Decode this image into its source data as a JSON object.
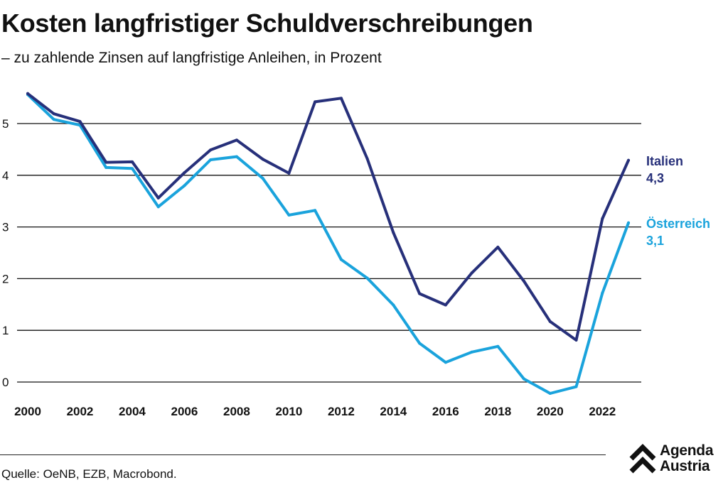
{
  "title": "Kosten langfristiger Schuldverschreibungen",
  "subtitle": "– zu zahlende Zinsen auf langfristige Anleihen, in Prozent",
  "source": "Quelle: OeNB, EZB, Macrobond.",
  "logo": {
    "line1": "Agenda",
    "line2": "Austria"
  },
  "chart_data": {
    "type": "line",
    "title": "Kosten langfristiger Schuldverschreibungen",
    "subtitle": "– zu zahlende Zinsen auf langfristige Anleihen, in Prozent",
    "xlabel": "",
    "ylabel": "",
    "xlim": [
      2000,
      2023
    ],
    "ylim": [
      -0.3,
      5.8
    ],
    "yticks": [
      0,
      1,
      2,
      3,
      4,
      5
    ],
    "xticks": [
      2000,
      2002,
      2004,
      2006,
      2008,
      2010,
      2012,
      2014,
      2016,
      2018,
      2020,
      2022
    ],
    "grid": true,
    "x": [
      2000,
      2001,
      2002,
      2003,
      2004,
      2005,
      2006,
      2007,
      2008,
      2009,
      2010,
      2011,
      2012,
      2013,
      2014,
      2015,
      2016,
      2017,
      2018,
      2019,
      2020,
      2021,
      2022,
      2023
    ],
    "series": [
      {
        "name": "Italien",
        "color": "#27307a",
        "end_label": "4,3",
        "values": [
          5.58,
          5.19,
          5.04,
          4.25,
          4.26,
          3.56,
          4.05,
          4.49,
          4.68,
          4.31,
          4.04,
          5.42,
          5.49,
          4.32,
          2.89,
          1.71,
          1.49,
          2.11,
          2.61,
          1.95,
          1.17,
          0.81,
          3.16,
          4.29
        ]
      },
      {
        "name": "Österreich",
        "color": "#1aa3dc",
        "end_label": "3,1",
        "values": [
          5.56,
          5.08,
          4.97,
          4.15,
          4.13,
          3.39,
          3.8,
          4.3,
          4.36,
          3.94,
          3.23,
          3.32,
          2.37,
          2.01,
          1.49,
          0.75,
          0.38,
          0.58,
          0.69,
          0.06,
          -0.22,
          -0.09,
          1.72,
          3.08
        ]
      }
    ]
  }
}
